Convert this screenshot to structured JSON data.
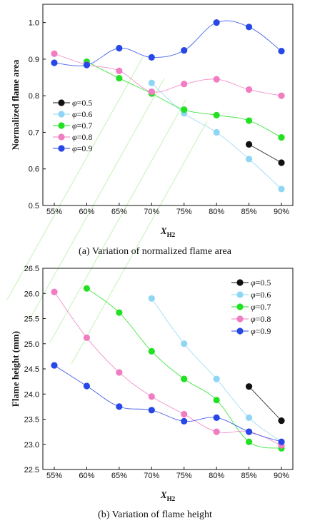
{
  "colors": {
    "phi_0_5": "#111111",
    "phi_0_6": "#8fd6f5",
    "phi_0_7": "#22e022",
    "phi_0_8": "#f07cc2",
    "phi_0_9": "#2747e6",
    "watermark": "#b8f2a8"
  },
  "chart_data": [
    {
      "type": "line",
      "caption": "(a) Variation of normalized flame area",
      "xlabel": "X",
      "xlabel_sub": "H2",
      "ylabel": "Normalized flame area",
      "categories": [
        "55%",
        "60%",
        "65%",
        "70%",
        "75%",
        "80%",
        "85%",
        "90%"
      ],
      "ylim": [
        0.5,
        1.05
      ],
      "yticks": [
        "0.5",
        "0.6",
        "0.7",
        "0.8",
        "0.9",
        "1.0"
      ],
      "legend_position": "left",
      "series": [
        {
          "name": "φ=0.5",
          "symbol": "φ",
          "label": "=0.5",
          "color_key": "phi_0_5",
          "values": [
            null,
            null,
            null,
            null,
            null,
            null,
            0.667,
            0.617
          ]
        },
        {
          "name": "φ=0.6",
          "symbol": "φ",
          "label": "=0.6",
          "color_key": "phi_0_6",
          "values": [
            null,
            null,
            null,
            0.835,
            0.752,
            0.7,
            0.627,
            0.545
          ]
        },
        {
          "name": "φ=0.7",
          "symbol": "φ",
          "label": "=0.7",
          "color_key": "phi_0_7",
          "values": [
            null,
            0.893,
            0.848,
            0.806,
            0.762,
            0.747,
            0.732,
            0.686
          ]
        },
        {
          "name": "φ=0.8",
          "symbol": "φ",
          "label": "=0.8",
          "color_key": "phi_0_8",
          "values": [
            0.915,
            0.885,
            0.868,
            0.811,
            0.832,
            0.845,
            0.817,
            0.8
          ]
        },
        {
          "name": "φ=0.9",
          "symbol": "φ",
          "label": "=0.9",
          "color_key": "phi_0_9",
          "values": [
            0.89,
            0.884,
            0.93,
            0.905,
            0.924,
            1.0,
            0.988,
            0.922
          ]
        }
      ]
    },
    {
      "type": "line",
      "caption": "(b) Variation of flame height",
      "xlabel": "X",
      "xlabel_sub": "H2",
      "ylabel": "Flame height (mm)",
      "categories": [
        "55%",
        "60%",
        "65%",
        "70%",
        "75%",
        "80%",
        "85%",
        "90%"
      ],
      "ylim": [
        22.5,
        26.5
      ],
      "yticks": [
        "22.5",
        "23.0",
        "23.5",
        "24.0",
        "24.5",
        "25.0",
        "25.5",
        "26.0",
        "26.5"
      ],
      "legend_position": "top-right",
      "series": [
        {
          "name": "φ=0.5",
          "symbol": "φ",
          "label": "=0.5",
          "color_key": "phi_0_5",
          "values": [
            null,
            null,
            null,
            null,
            null,
            null,
            24.15,
            23.47
          ]
        },
        {
          "name": "φ=0.6",
          "symbol": "φ",
          "label": "=0.6",
          "color_key": "phi_0_6",
          "values": [
            null,
            null,
            null,
            25.9,
            25.0,
            24.3,
            23.53,
            23.05
          ]
        },
        {
          "name": "φ=0.7",
          "symbol": "φ",
          "label": "=0.7",
          "color_key": "phi_0_7",
          "values": [
            null,
            26.1,
            25.62,
            24.85,
            24.3,
            23.88,
            23.05,
            22.92
          ]
        },
        {
          "name": "φ=0.8",
          "symbol": "φ",
          "label": "=0.8",
          "color_key": "phi_0_8",
          "values": [
            26.03,
            25.12,
            24.43,
            23.95,
            23.6,
            23.25,
            23.25,
            22.98
          ]
        },
        {
          "name": "φ=0.9",
          "symbol": "φ",
          "label": "=0.9",
          "color_key": "phi_0_9",
          "values": [
            24.57,
            24.16,
            23.75,
            23.68,
            23.46,
            23.53,
            23.25,
            23.05
          ]
        }
      ]
    }
  ]
}
